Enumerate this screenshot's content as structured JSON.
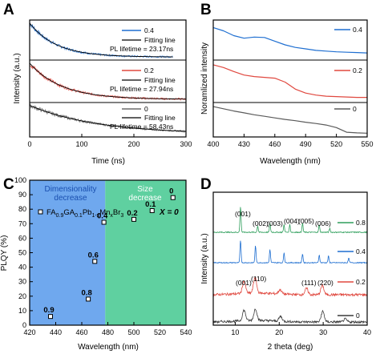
{
  "panels": {
    "a": "A",
    "b": "B",
    "c": "C",
    "d": "D"
  },
  "chart_data": [
    {
      "id": "A",
      "type": "line",
      "xlabel": "Time (ns)",
      "ylabel": "Intensity (a.u.)",
      "xlim": [
        0,
        300
      ],
      "xticks": [
        "0",
        "100",
        "200",
        "300"
      ],
      "stacked_panels": [
        {
          "x_value": "0.4",
          "color": "#1f6fd1",
          "fit_label": "Fitting line",
          "lifetime_label": "PL lifetime = 23.17ns",
          "lifetime_ns": 23.17,
          "data_end_ns": 275
        },
        {
          "x_value": "0.2",
          "color": "#e0483f",
          "fit_label": "Fitting line",
          "lifetime_label": "PL lifetime = 27.94ns",
          "lifetime_ns": 27.94,
          "data_end_ns": 300
        },
        {
          "x_value": "0",
          "color": "#6b6b6b",
          "fit_label": "Fitting line",
          "lifetime_label": "PL lifetime = 58.43ns",
          "lifetime_ns": 58.43,
          "data_end_ns": 300
        }
      ]
    },
    {
      "id": "B",
      "type": "line",
      "xlabel": "Wavelength (nm)",
      "ylabel": "Noramlized intensity",
      "xlim": [
        400,
        550
      ],
      "xticks": [
        "400",
        "430",
        "460",
        "490",
        "520",
        "550"
      ],
      "series": [
        {
          "name": "0.4",
          "color": "#1f6fd1",
          "x": [
            400,
            410,
            420,
            430,
            440,
            450,
            460,
            470,
            480,
            490,
            500,
            510,
            520,
            530,
            540,
            550
          ],
          "y": [
            0.84,
            0.75,
            0.62,
            0.55,
            0.58,
            0.57,
            0.47,
            0.37,
            0.3,
            0.26,
            0.22,
            0.2,
            0.18,
            0.17,
            0.16,
            0.15
          ]
        },
        {
          "name": "0.2",
          "color": "#e0483f",
          "x": [
            400,
            410,
            420,
            430,
            440,
            450,
            460,
            470,
            480,
            490,
            500,
            510,
            520,
            530,
            540,
            550
          ],
          "y": [
            0.92,
            0.85,
            0.75,
            0.66,
            0.62,
            0.6,
            0.58,
            0.48,
            0.3,
            0.2,
            0.15,
            0.12,
            0.11,
            0.1,
            0.09,
            0.09
          ]
        },
        {
          "name": "0",
          "color": "#5a5a5a",
          "x": [
            400,
            410,
            420,
            430,
            440,
            450,
            460,
            470,
            480,
            490,
            500,
            510,
            520,
            530,
            540,
            550
          ],
          "y": [
            0.92,
            0.85,
            0.78,
            0.72,
            0.66,
            0.61,
            0.56,
            0.51,
            0.47,
            0.42,
            0.38,
            0.33,
            0.25,
            0.1,
            0.08,
            0.07
          ]
        }
      ]
    },
    {
      "id": "C",
      "type": "scatter",
      "xlabel": "Wavelength (nm)",
      "ylabel": "PLQY (%)",
      "xlim": [
        420,
        540
      ],
      "ylim": [
        0,
        100
      ],
      "xticks": [
        "420",
        "440",
        "460",
        "480",
        "500",
        "520",
        "540"
      ],
      "yticks": [
        "0",
        "10",
        "20",
        "30",
        "40",
        "50",
        "60",
        "70",
        "80",
        "90",
        "100"
      ],
      "regions": [
        {
          "label_line1": "Dimensionality",
          "label_line2": "decrease",
          "from": 420,
          "to": 478,
          "color": "#6fa8ee"
        },
        {
          "label_line1": "Size",
          "label_line2": "decrease",
          "from": 478,
          "to": 540,
          "color": "#5fd0a0"
        }
      ],
      "formula": {
        "a": "FA",
        "a_sub": "0.9",
        "b": "GA",
        "b_sub": "0.1",
        "c": "Pb",
        "c_sub": "1-x",
        "d": "Mn",
        "d_sub": "x",
        "e": "Br",
        "e_sub": "3"
      },
      "x_equals_label": "X = 0",
      "points": [
        {
          "label": "0.9",
          "x": 436,
          "y": 6
        },
        {
          "label": "0.8",
          "x": 465,
          "y": 18
        },
        {
          "label": "0.6",
          "x": 470,
          "y": 44
        },
        {
          "label": "0.4",
          "x": 477,
          "y": 71
        },
        {
          "label": "0.2",
          "x": 500,
          "y": 73
        },
        {
          "label": "0.1",
          "x": 514,
          "y": 79
        },
        {
          "label": "0",
          "x": 530,
          "y": 88
        }
      ]
    },
    {
      "id": "D",
      "type": "line",
      "xlabel": "2 theta (deg)",
      "ylabel": "Intensity (a.u.)",
      "xlim": [
        5,
        40
      ],
      "xticks": [
        "10",
        "20",
        "30",
        "40"
      ],
      "series": [
        {
          "name": "0.8",
          "color": "#2e9e5b",
          "peaks": [
            [
              11.2,
              1.0
            ],
            [
              15.1,
              0.25
            ],
            [
              17.9,
              0.35
            ],
            [
              21.1,
              0.3
            ],
            [
              22.4,
              0.3
            ],
            [
              25.3,
              0.35
            ],
            [
              29.1,
              0.3
            ],
            [
              31.5,
              0.15
            ]
          ]
        },
        {
          "name": "0.4",
          "color": "#1f6fd1",
          "peaks": [
            [
              11.2,
              1.0
            ],
            [
              14.6,
              0.75
            ],
            [
              17.9,
              0.6
            ],
            [
              21.1,
              0.45
            ],
            [
              25.3,
              0.4
            ],
            [
              29.1,
              0.35
            ],
            [
              31.2,
              0.3
            ],
            [
              35.8,
              0.2
            ]
          ]
        },
        {
          "name": "0.2",
          "color": "#e0483f",
          "peaks": [
            [
              12.0,
              0.6
            ],
            [
              14.5,
              0.75
            ],
            [
              20.2,
              0.2
            ],
            [
              26.2,
              0.3
            ],
            [
              29.8,
              0.45
            ]
          ]
        },
        {
          "name": "0",
          "color": "#3a3a3a",
          "peaks": [
            [
              12.0,
              0.55
            ],
            [
              14.6,
              0.6
            ],
            [
              20.3,
              0.25
            ],
            [
              29.9,
              0.55
            ],
            [
              35.0,
              0.15
            ]
          ]
        }
      ],
      "annotations_top": [
        "(001)",
        "(002)",
        "(003)",
        "(004)",
        "(005)",
        "(006)"
      ],
      "annotations_bottom": [
        "(001)",
        "(110)",
        "(111)",
        "(220)"
      ]
    }
  ]
}
